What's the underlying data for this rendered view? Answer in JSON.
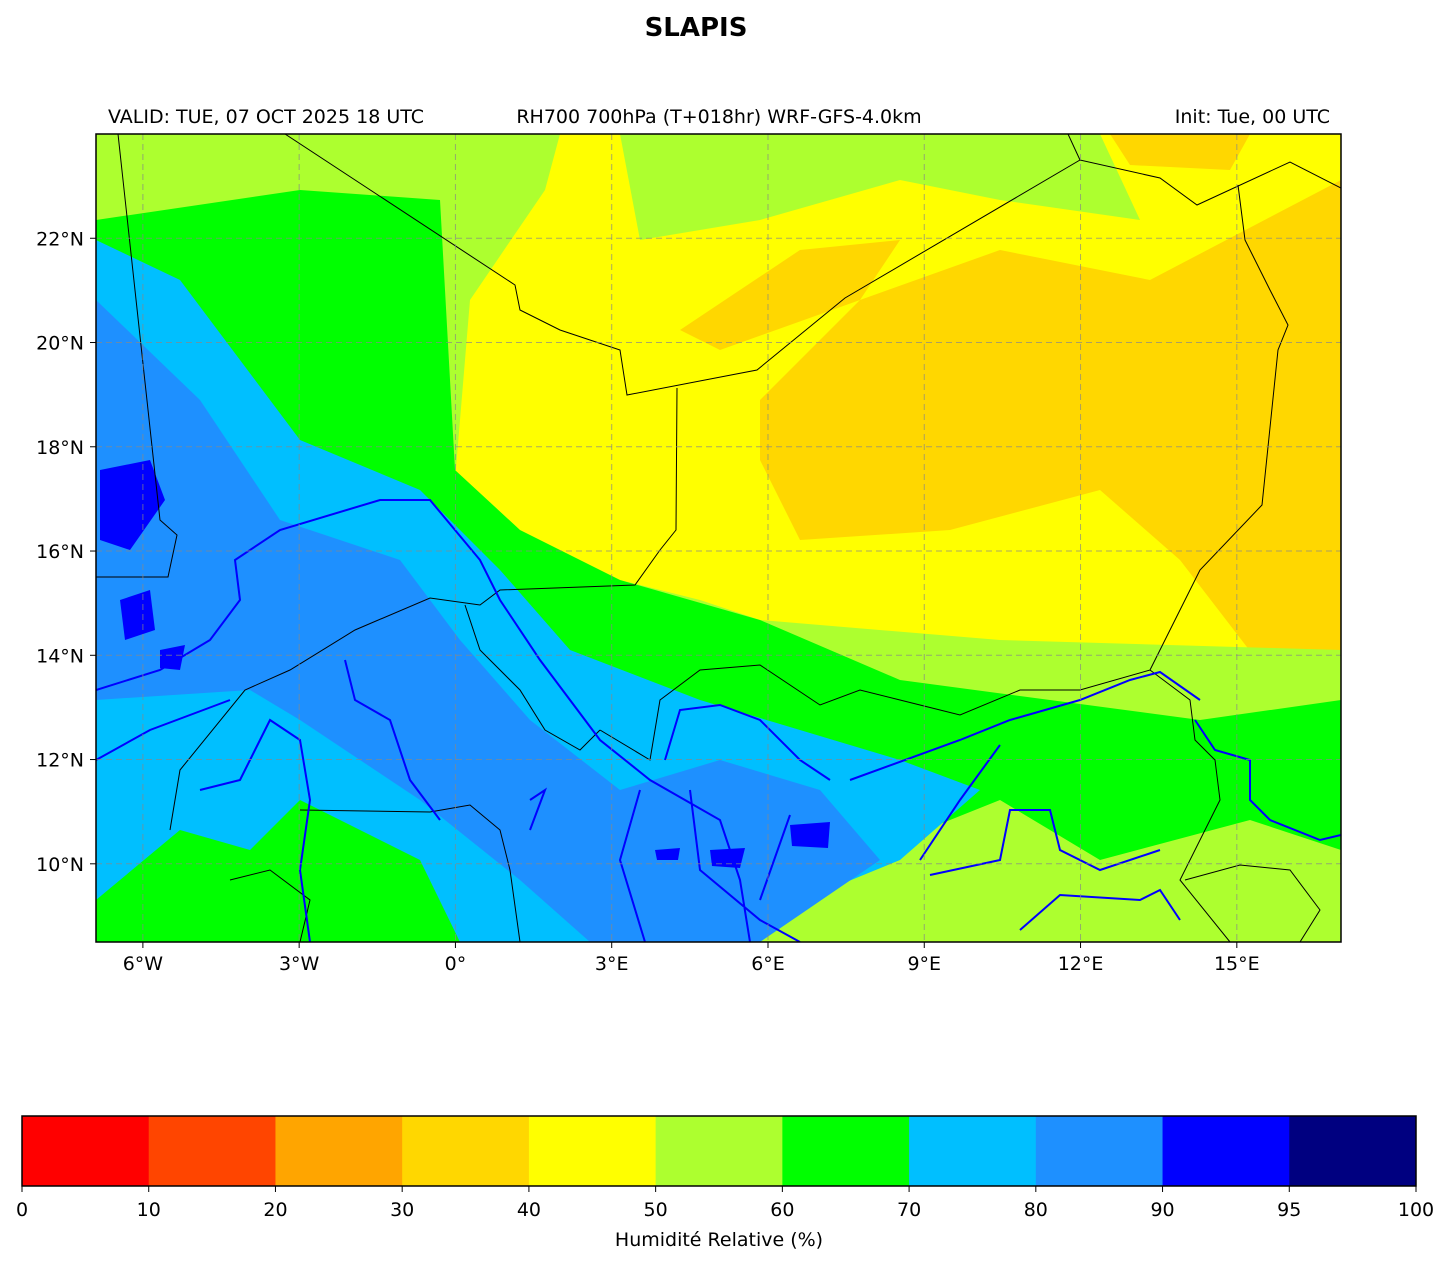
{
  "title": "SLAPIS",
  "valid": "VALID: TUE, 07 OCT 2025 18 UTC",
  "product": "RH700 700hPa (T+018hr) WRF-GFS-4.0km",
  "init": "Init: Tue, 00 UTC",
  "map": {
    "xlim": [
      -6.9,
      17
    ],
    "ylim": [
      8.5,
      24
    ],
    "grid": true,
    "xticks": [
      {
        "value": -6,
        "label": "6°W"
      },
      {
        "value": -3,
        "label": "3°W"
      },
      {
        "value": 0,
        "label": "0°"
      },
      {
        "value": 3,
        "label": "3°E"
      },
      {
        "value": 6,
        "label": "6°E"
      },
      {
        "value": 9,
        "label": "9°E"
      },
      {
        "value": 12,
        "label": "12°E"
      },
      {
        "value": 15,
        "label": "15°E"
      }
    ],
    "yticks": [
      {
        "value": 10,
        "label": "10°N"
      },
      {
        "value": 12,
        "label": "12°N"
      },
      {
        "value": 14,
        "label": "14°N"
      },
      {
        "value": 16,
        "label": "16°N"
      },
      {
        "value": 18,
        "label": "18°N"
      },
      {
        "value": 20,
        "label": "20°N"
      },
      {
        "value": 22,
        "label": "22°N"
      }
    ]
  },
  "colorbar": {
    "label": "Humidité Relative (%)",
    "spacing": "uniform",
    "bounds": [
      0,
      10,
      20,
      30,
      40,
      50,
      60,
      70,
      80,
      90,
      95,
      100
    ],
    "colors": [
      "#ff0000",
      "#ff4500",
      "#ffa500",
      "#ffd700",
      "#ffff00",
      "#adff2f",
      "#00ff00",
      "#00bfff",
      "#1e90ff",
      "#0000ff",
      "#000080"
    ]
  }
}
